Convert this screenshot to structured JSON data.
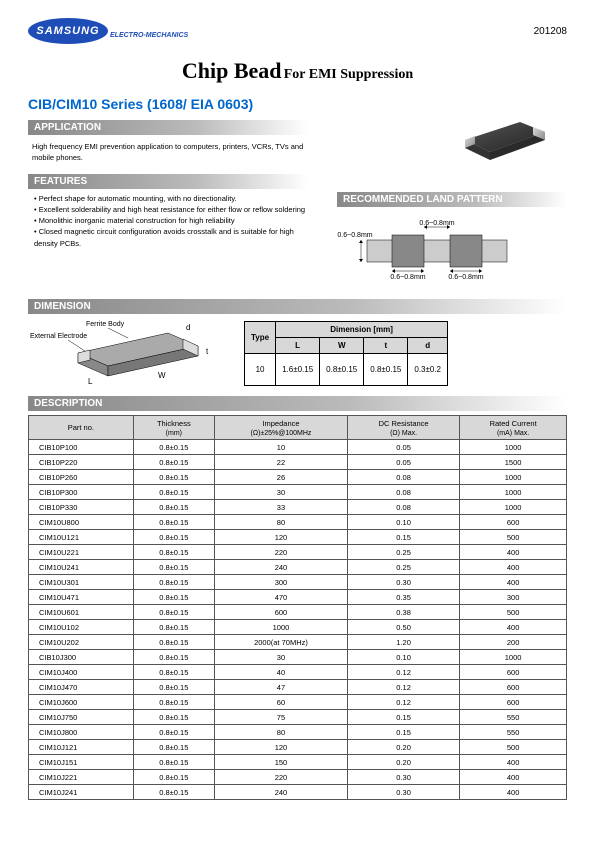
{
  "header": {
    "brand": "SAMSUNG",
    "brand_sub": "ELECTRO-MECHANICS",
    "date": "201208"
  },
  "title": {
    "main": "Chip Bead",
    "sub": "For EMI Suppression"
  },
  "series": "CIB/CIM10 Series (1608/ EIA 0603)",
  "sections": {
    "application": "APPLICATION",
    "features": "FEATURES",
    "recommended": "RECOMMENDED LAND PATTERN",
    "dimension": "DIMENSION",
    "description": "DESCRIPTION"
  },
  "application_text": "High frequency EMI prevention application to computers, printers, VCRs, TVs and mobile phones.",
  "features": [
    "Perfect shape for automatic mounting, with no directionality.",
    "Excellent solderability and high heat resistance for either flow or reflow soldering",
    "Monolithic inorganic material construction for high reliability",
    "Closed magnetic circuit configuration avoids crosstalk and is suitable for high density PCBs."
  ],
  "land_pattern_labels": {
    "top": "0.6~0.8mm",
    "left": "0.6~0.8mm",
    "bottom1": "0.6~0.8mm",
    "bottom2": "0.6~0.8mm"
  },
  "dimension_labels": {
    "ferrite": "Ferrite Body",
    "electrode": "External Electrode"
  },
  "dim_table": {
    "type_head": "Type",
    "dim_head": "Dimension [mm]",
    "cols": [
      "L",
      "W",
      "t",
      "d"
    ],
    "row_type": "10",
    "row_vals": [
      "1.6±0.15",
      "0.8±0.15",
      "0.8±0.15",
      "0.3±0.2"
    ]
  },
  "desc_headers": {
    "part": "Part no.",
    "thickness": "Thickness",
    "thickness_unit": "(mm)",
    "impedance": "Impedance",
    "impedance_unit": "(Ω)±25%@100MHz",
    "dcres": "DC Resistance",
    "dcres_unit": "(Ω) Max.",
    "rated": "Rated Current",
    "rated_unit": "(mA) Max."
  },
  "desc_rows": [
    [
      "CIB10P100",
      "0.8±0.15",
      "10",
      "0.05",
      "1000"
    ],
    [
      "CIB10P220",
      "0.8±0.15",
      "22",
      "0.05",
      "1500"
    ],
    [
      "CIB10P260",
      "0.8±0.15",
      "26",
      "0.08",
      "1000"
    ],
    [
      "CIB10P300",
      "0.8±0.15",
      "30",
      "0.08",
      "1000"
    ],
    [
      "CIB10P330",
      "0.8±0.15",
      "33",
      "0.08",
      "1000"
    ],
    [
      "CIM10U800",
      "0.8±0.15",
      "80",
      "0.10",
      "600"
    ],
    [
      "CIM10U121",
      "0.8±0.15",
      "120",
      "0.15",
      "500"
    ],
    [
      "CIM10U221",
      "0.8±0.15",
      "220",
      "0.25",
      "400"
    ],
    [
      "CIM10U241",
      "0.8±0.15",
      "240",
      "0.25",
      "400"
    ],
    [
      "CIM10U301",
      "0.8±0.15",
      "300",
      "0.30",
      "400"
    ],
    [
      "CIM10U471",
      "0.8±0.15",
      "470",
      "0.35",
      "300"
    ],
    [
      "CIM10U601",
      "0.8±0.15",
      "600",
      "0.38",
      "500"
    ],
    [
      "CIM10U102",
      "0.8±0.15",
      "1000",
      "0.50",
      "400"
    ],
    [
      "CIM10U202",
      "0.8±0.15",
      "2000(at 70MHz)",
      "1.20",
      "200"
    ],
    [
      "CIB10J300",
      "0.8±0.15",
      "30",
      "0.10",
      "1000"
    ],
    [
      "CIM10J400",
      "0.8±0.15",
      "40",
      "0.12",
      "600"
    ],
    [
      "CIM10J470",
      "0.8±0.15",
      "47",
      "0.12",
      "600"
    ],
    [
      "CIM10J600",
      "0.8±0.15",
      "60",
      "0.12",
      "600"
    ],
    [
      "CIM10J750",
      "0.8±0.15",
      "75",
      "0.15",
      "550"
    ],
    [
      "CIM10J800",
      "0.8±0.15",
      "80",
      "0.15",
      "550"
    ],
    [
      "CIM10J121",
      "0.8±0.15",
      "120",
      "0.20",
      "500"
    ],
    [
      "CIM10J151",
      "0.8±0.15",
      "150",
      "0.20",
      "400"
    ],
    [
      "CIM10J221",
      "0.8±0.15",
      "220",
      "0.30",
      "400"
    ],
    [
      "CIM10J241",
      "0.8±0.15",
      "240",
      "0.30",
      "400"
    ]
  ]
}
